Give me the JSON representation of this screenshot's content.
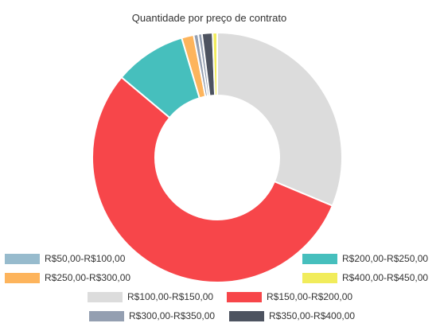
{
  "chart_data": {
    "type": "pie",
    "variant": "donut",
    "title": "Quantidade por preço de contrato",
    "slices": [
      {
        "label": "R$100,00-R$150,00",
        "value": 320,
        "color": "#dcdcdc"
      },
      {
        "label": "R$150,00-R$200,00",
        "value": 560,
        "color": "#f7464a"
      },
      {
        "label": "R$200,00-R$250,00",
        "value": 95,
        "color": "#46bfbd"
      },
      {
        "label": "R$250,00-R$300,00",
        "value": 16,
        "color": "#fdb45c"
      },
      {
        "label": "R$50,00-R$100,00",
        "value": 6,
        "color": "#949fb1"
      },
      {
        "label": "R$300,00-R$350,00",
        "value": 5,
        "color": "#949fb1"
      },
      {
        "label": "R$350,00-R$400,00",
        "value": 14,
        "color": "#4d5360"
      },
      {
        "label": "R$400,00-R$450,00",
        "value": 6,
        "color": "#f1ec5b"
      }
    ],
    "legend": [
      {
        "label": "R$50,00-R$100,00",
        "color": "#97bbcd"
      },
      {
        "label": "R$200,00-R$250,00",
        "color": "#46bfbd"
      },
      {
        "label": "R$250,00-R$300,00",
        "color": "#fdb45c"
      },
      {
        "label": "R$400,00-R$450,00",
        "color": "#f1ec5b"
      },
      {
        "label": "R$100,00-R$150,00",
        "color": "#dcdcdc"
      },
      {
        "label": "R$150,00-R$200,00",
        "color": "#f7464a"
      },
      {
        "label": "R$300,00-R$350,00",
        "color": "#949fb1"
      },
      {
        "label": "R$350,00-R$400,00",
        "color": "#4d5360"
      }
    ],
    "legend_placement": "bottom"
  }
}
